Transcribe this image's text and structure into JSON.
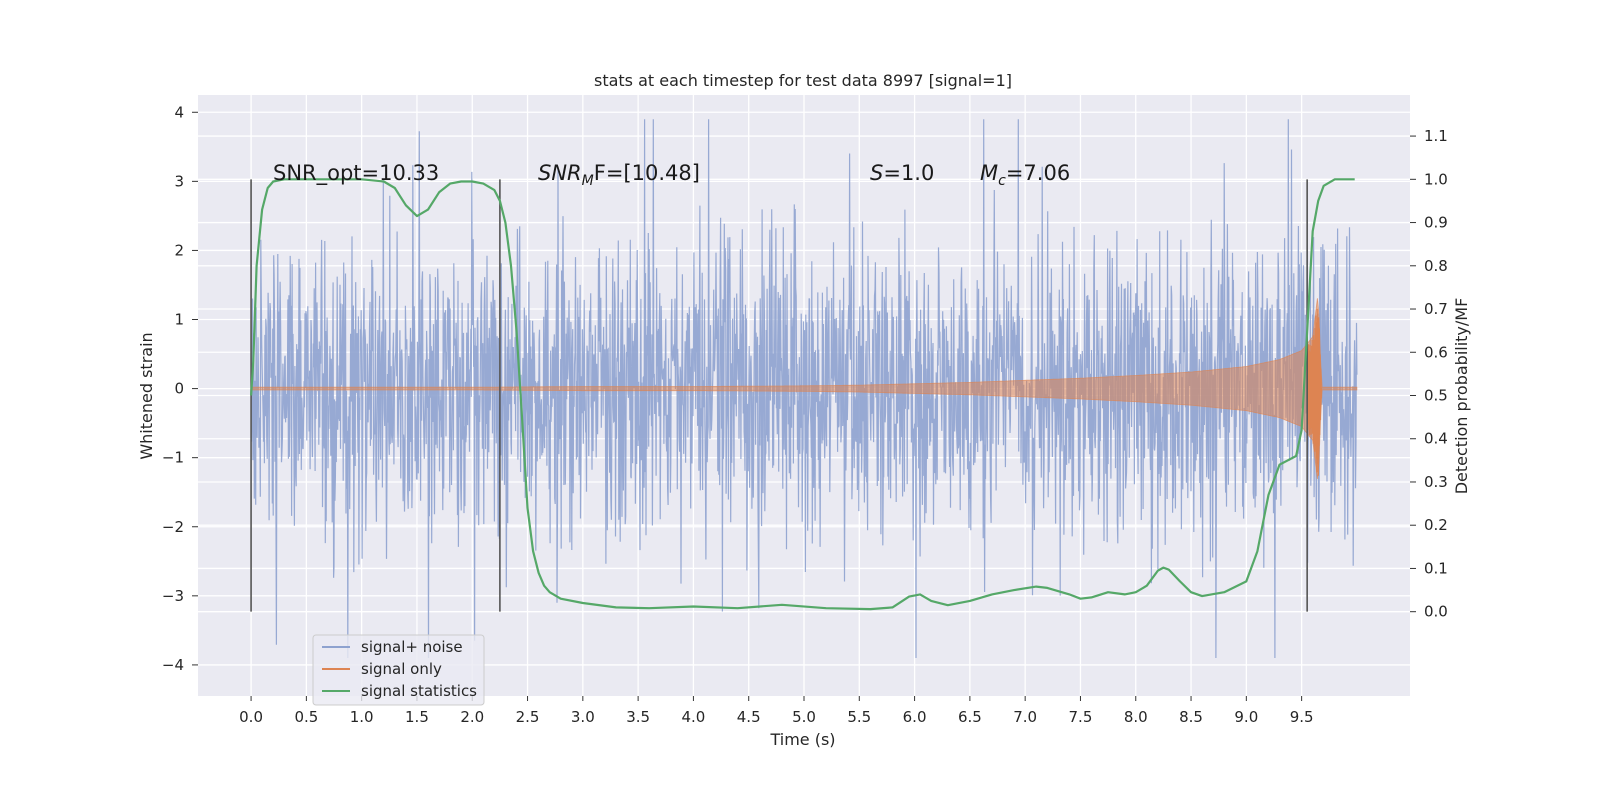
{
  "chart_data": {
    "type": "line",
    "title": "stats at each timestep for test data 8997 [signal=1]",
    "xlabel": "Time (s)",
    "ylabel": "Whitened strain",
    "y2label": "Detection probability/MF",
    "xlim": [
      -0.48,
      10.48
    ],
    "ylim": [
      -4.45,
      4.25
    ],
    "y2lim": [
      -0.195,
      1.195
    ],
    "x_ticks": [
      "0.0",
      "0.5",
      "1.0",
      "1.5",
      "2.0",
      "2.5",
      "3.0",
      "3.5",
      "4.0",
      "4.5",
      "5.0",
      "5.5",
      "6.0",
      "6.5",
      "7.0",
      "7.5",
      "8.0",
      "8.5",
      "9.0",
      "9.5"
    ],
    "y_ticks": [
      "4",
      "3",
      "2",
      "1",
      "0",
      "−1",
      "−2",
      "−3",
      "−4"
    ],
    "y2_ticks": [
      "1.1",
      "1.0",
      "0.9",
      "0.8",
      "0.7",
      "0.6",
      "0.5",
      "0.4",
      "0.3",
      "0.2",
      "0.1",
      "0.0"
    ],
    "grid": true,
    "legend_position": "lower-left",
    "annotations": {
      "snr_opt": "SNR_opt=10.33",
      "snr_mf_prefix": "SNR",
      "snr_mf_sub": "M",
      "snr_mf_rest": "F=[10.48]",
      "s_italic": "S",
      "s_rest": "=1.0",
      "mc_italic": "M",
      "mc_sub": "c",
      "mc_rest": "=7.06"
    },
    "vertical_markers_x": [
      0.0,
      2.25,
      9.55
    ],
    "series": [
      {
        "name": "signal+ noise",
        "color": "#8ea2cf",
        "description_points": "dense whitened strain trace, t from 0 to 10 s",
        "envelope": {
          "t": [
            0.0,
            10.0
          ],
          "typical_abs": 1.5,
          "peak_abs": 3.9
        }
      },
      {
        "name": "signal only",
        "color": "#dd8452",
        "envelope_t": [
          0.0,
          1.0,
          2.0,
          3.0,
          4.0,
          5.0,
          5.5,
          6.0,
          6.5,
          7.0,
          7.5,
          8.0,
          8.5,
          9.0,
          9.3,
          9.5,
          9.6,
          9.65,
          9.68,
          10.0
        ],
        "envelope_amp": [
          0.02,
          0.02,
          0.02,
          0.03,
          0.03,
          0.04,
          0.05,
          0.07,
          0.09,
          0.12,
          0.15,
          0.19,
          0.24,
          0.32,
          0.42,
          0.55,
          0.75,
          1.4,
          0.02,
          0.02
        ]
      },
      {
        "name": "signal statistics",
        "color": "#55a868",
        "x": [
          0.0,
          0.02,
          0.05,
          0.1,
          0.15,
          0.2,
          0.3,
          0.5,
          0.8,
          1.0,
          1.2,
          1.3,
          1.4,
          1.5,
          1.6,
          1.7,
          1.8,
          1.9,
          2.0,
          2.1,
          2.2,
          2.25,
          2.3,
          2.35,
          2.4,
          2.45,
          2.5,
          2.55,
          2.6,
          2.65,
          2.7,
          2.8,
          3.0,
          3.3,
          3.6,
          4.0,
          4.4,
          4.8,
          5.2,
          5.6,
          5.8,
          5.95,
          6.05,
          6.15,
          6.3,
          6.5,
          6.7,
          6.9,
          7.1,
          7.2,
          7.4,
          7.5,
          7.6,
          7.75,
          7.9,
          8.0,
          8.1,
          8.2,
          8.25,
          8.3,
          8.4,
          8.5,
          8.6,
          8.8,
          9.0,
          9.1,
          9.2,
          9.3,
          9.45,
          9.5,
          9.55,
          9.6,
          9.65,
          9.7,
          9.8,
          9.9,
          9.98
        ],
        "y": [
          0.5,
          0.58,
          0.8,
          0.93,
          0.98,
          0.995,
          1.0,
          1.0,
          1.0,
          1.0,
          0.995,
          0.98,
          0.94,
          0.915,
          0.93,
          0.97,
          0.99,
          0.995,
          0.995,
          0.99,
          0.975,
          0.95,
          0.9,
          0.8,
          0.65,
          0.45,
          0.24,
          0.14,
          0.09,
          0.06,
          0.045,
          0.03,
          0.02,
          0.01,
          0.008,
          0.012,
          0.008,
          0.016,
          0.008,
          0.006,
          0.01,
          0.035,
          0.04,
          0.025,
          0.015,
          0.025,
          0.04,
          0.05,
          0.058,
          0.055,
          0.04,
          0.03,
          0.033,
          0.045,
          0.04,
          0.045,
          0.06,
          0.095,
          0.102,
          0.097,
          0.07,
          0.045,
          0.036,
          0.045,
          0.07,
          0.14,
          0.27,
          0.34,
          0.36,
          0.42,
          0.65,
          0.88,
          0.95,
          0.985,
          1.0,
          1.0,
          1.0
        ]
      }
    ]
  }
}
